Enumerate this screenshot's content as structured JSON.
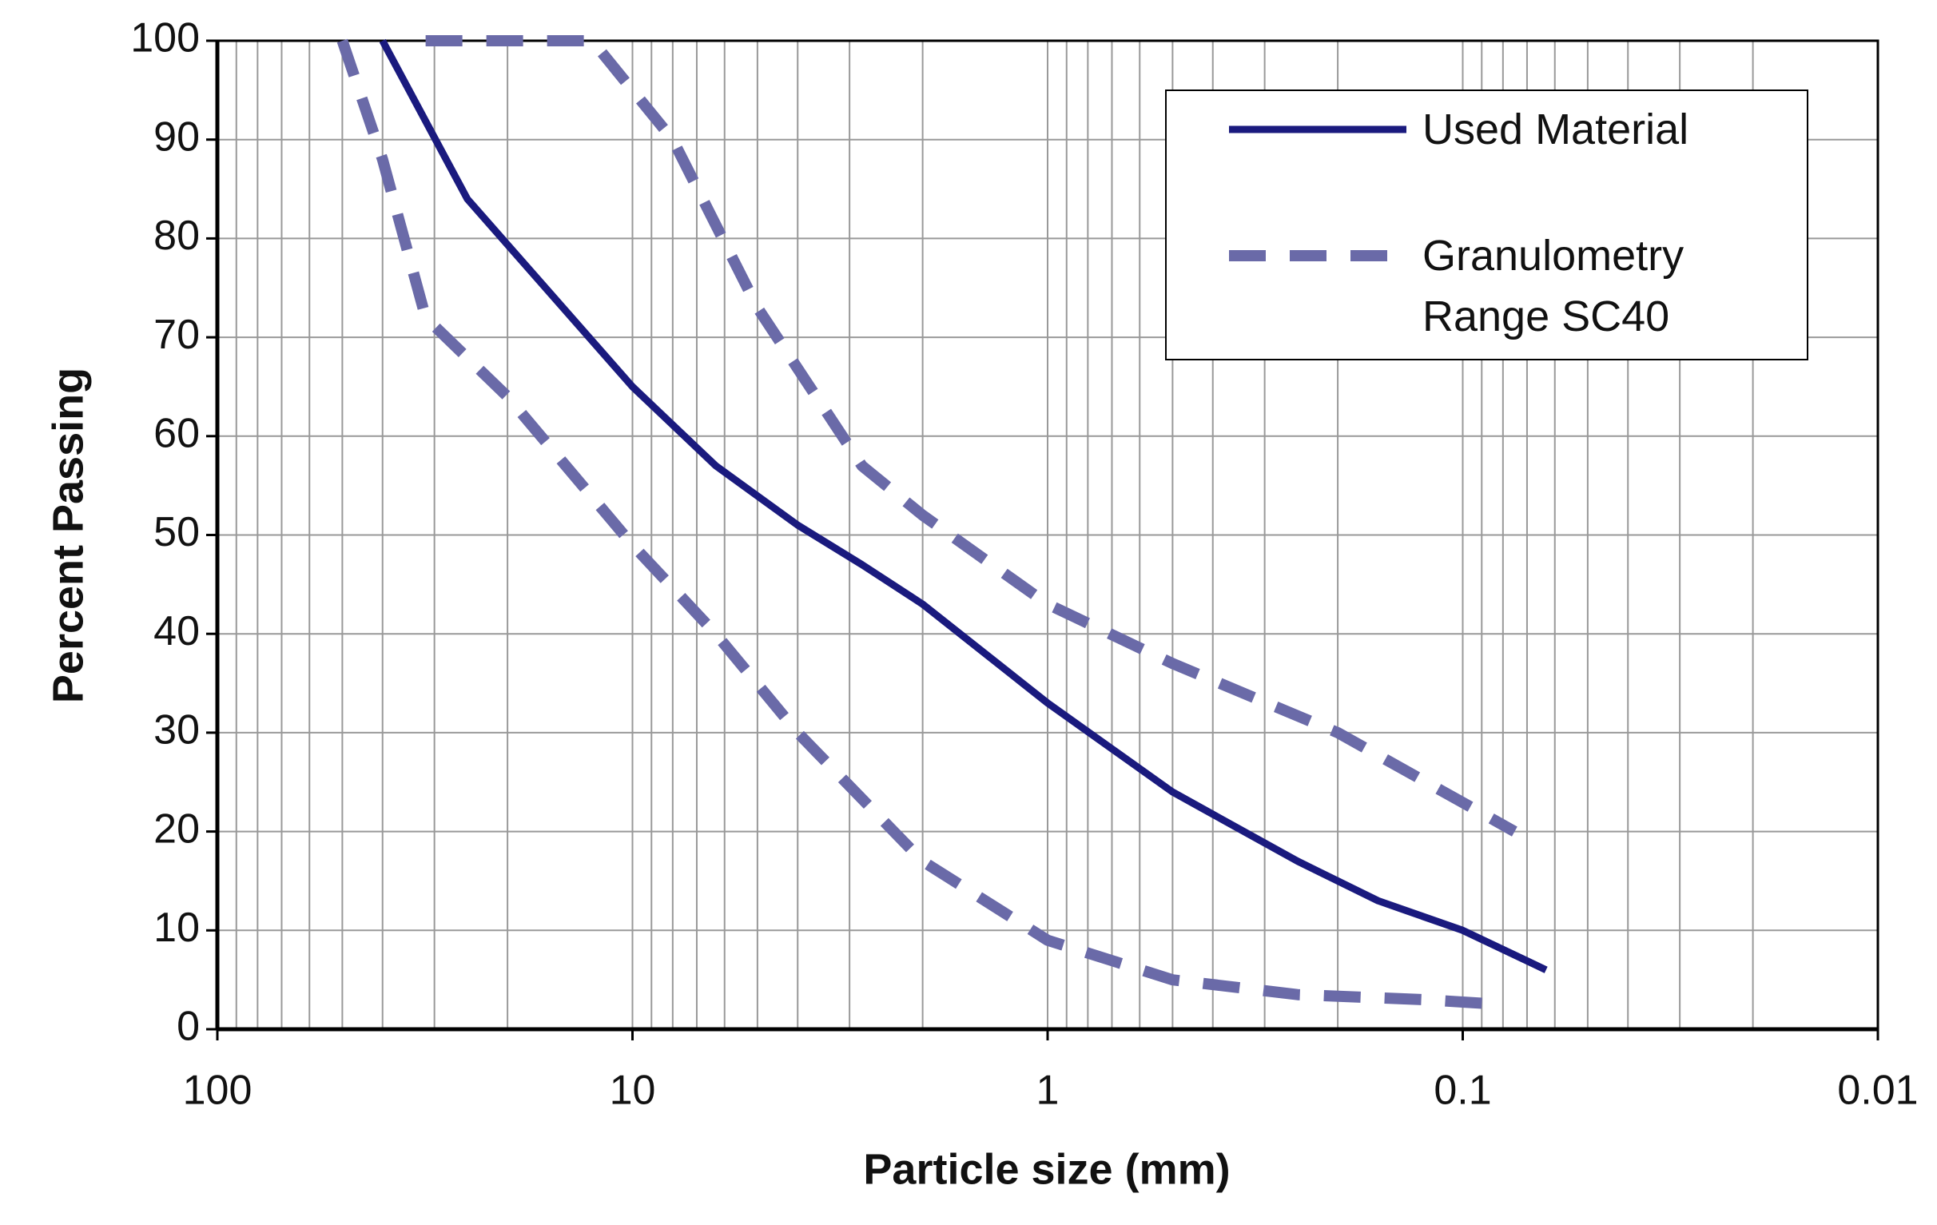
{
  "chart_data": {
    "type": "line",
    "x_label": "Particle size (mm)",
    "y_label": "Percent Passing",
    "x_log": true,
    "x_reversed": true,
    "grid": true,
    "x_minor_grid": true,
    "legend": "top-right",
    "xlim": [
      100,
      0.01
    ],
    "xticks": [
      100,
      10,
      1,
      0.1,
      0.01
    ],
    "ylim": [
      0,
      100
    ],
    "yticks": [
      0,
      10,
      20,
      30,
      40,
      50,
      60,
      70,
      80,
      90,
      100
    ],
    "series": [
      {
        "name": "Used Material",
        "color": "#1a1a7e",
        "dashed": false,
        "curves": [
          {
            "x": [
              40,
              25,
              10,
              6.3,
              4,
              2.8,
              2,
              1,
              0.5,
              0.25,
              0.16,
              0.1,
              0.063
            ],
            "values": [
              100,
              84,
              65,
              57,
              51,
              47,
              43,
              33,
              24,
              17,
              13,
              10,
              6
            ]
          }
        ]
      },
      {
        "name": "Granulometry Range SC40",
        "color": "#6a6aa8",
        "dashed": true,
        "curves": [
          {
            "x": [
              31.5,
              12.5,
              8,
              5,
              2.8,
              2,
              1,
              0.5,
              0.2,
              0.075
            ],
            "values": [
              100,
              100,
              90,
              73,
              57,
              52,
              43,
              37,
              30,
              20
            ]
          },
          {
            "x": [
              50,
              40,
              31.5,
              20,
              10,
              6.3,
              4,
              2,
              1,
              0.5,
              0.25,
              0.125,
              0.08
            ],
            "values": [
              100,
              88,
              72,
              64,
              49,
              40,
              30,
              17,
              9,
              5,
              3.5,
              3,
              2.5
            ]
          }
        ]
      }
    ]
  }
}
